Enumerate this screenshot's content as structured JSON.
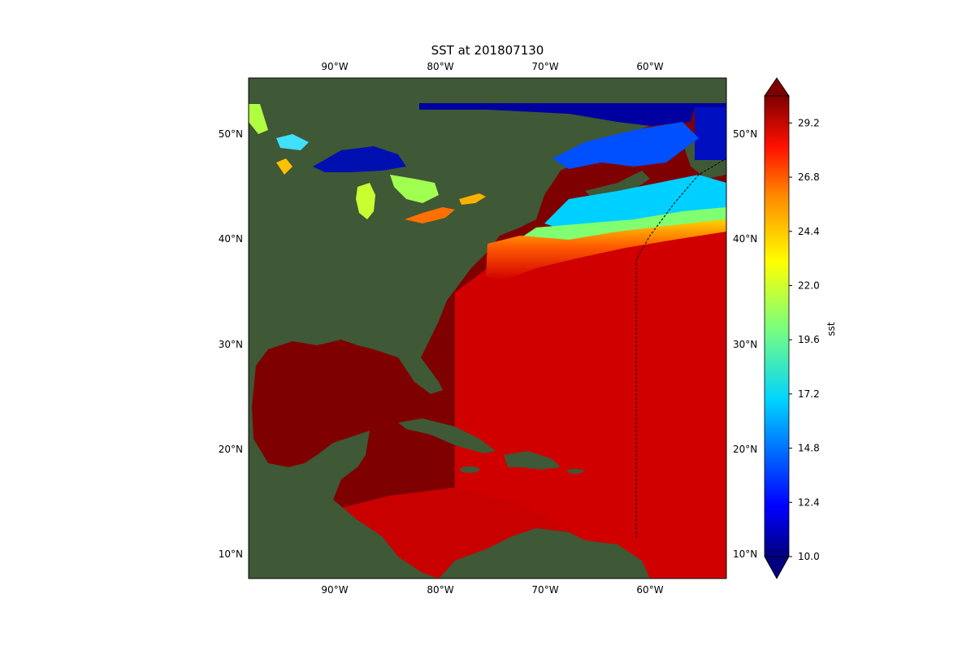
{
  "title": "SST at 201807130",
  "colorbar": {
    "label": "sst",
    "ticks": [
      "10.0",
      "12.4",
      "14.8",
      "17.2",
      "19.6",
      "22.0",
      "24.4",
      "26.8",
      "29.2"
    ],
    "range": [
      10.0,
      30.4
    ],
    "extend": "both",
    "colormap": "jet"
  },
  "map": {
    "lon_ticks": [
      "90°W",
      "80°W",
      "70°W",
      "60°W"
    ],
    "lat_ticks": [
      "50°N",
      "40°N",
      "30°N",
      "20°N",
      "10°N"
    ],
    "lon_range": [
      -98.0,
      -53.0
    ],
    "lat_range": [
      8.0,
      55.5
    ],
    "land_color": "#3f5836",
    "warm_sea_color": "#7f0000",
    "track_style": "dashed black line"
  }
}
